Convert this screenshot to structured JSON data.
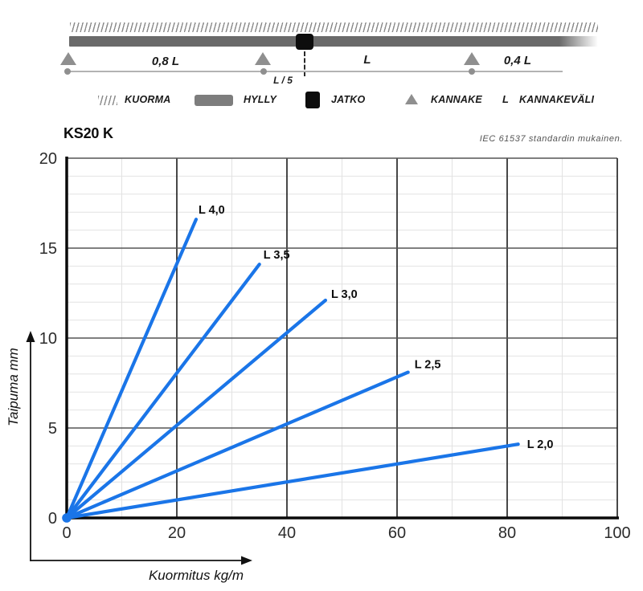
{
  "beam_diagram": {
    "span_labels": {
      "left": "0,8 L",
      "middle": "L",
      "right": "0,4 L"
    },
    "joint_offset_label": "L / 5"
  },
  "legend": {
    "items": [
      {
        "icon": "hatch-icon",
        "label": "KUORMA"
      },
      {
        "icon": "bar-icon",
        "label": "HYLLY"
      },
      {
        "icon": "square-icon",
        "label": "JATKO"
      },
      {
        "icon": "triangle-icon",
        "label": "KANNAKE"
      },
      {
        "icon": "letter-symbol",
        "symbol": "L",
        "label": "KANNAKEVÄLI"
      }
    ]
  },
  "chart": {
    "title": "KS20 K",
    "standard_note": "IEC 61537 standardin mukainen.",
    "x_axis_label": "Kuormitus kg/m",
    "y_axis_label": "Taipuma mm"
  },
  "chart_data": {
    "type": "line",
    "title": "KS20 K",
    "xlabel": "Kuormitus kg/m",
    "ylabel": "Taipuma mm",
    "xlim": [
      0,
      100
    ],
    "ylim": [
      0,
      20
    ],
    "x_major_ticks": [
      0,
      20,
      40,
      60,
      80,
      100
    ],
    "y_major_ticks": [
      0,
      5,
      10,
      15,
      20
    ],
    "x_minor_step": 10,
    "y_minor_step": 1,
    "grid": "major dark lines every 20 kg/m and 5 mm, minor light lines every 10 kg/m and 1 mm",
    "legend_position": "inline-labels-at-line-ends",
    "series": [
      {
        "name": "L 4,0",
        "points": [
          [
            0,
            0
          ],
          [
            23.5,
            16.6
          ]
        ]
      },
      {
        "name": "L 3,5",
        "points": [
          [
            0,
            0
          ],
          [
            35,
            14.1
          ]
        ]
      },
      {
        "name": "L 3,0",
        "points": [
          [
            0,
            0
          ],
          [
            47,
            12.1
          ]
        ]
      },
      {
        "name": "L 2,5",
        "points": [
          [
            0,
            0
          ],
          [
            62,
            8.1
          ]
        ]
      },
      {
        "name": "L 2,0",
        "points": [
          [
            0,
            0
          ],
          [
            82,
            4.1
          ]
        ]
      }
    ],
    "series_color": "#1a75e8"
  },
  "colors": {
    "line_blue": "#1a75e8",
    "shelf_gray": "#6a6a6a",
    "support_gray": "#8f8f8f",
    "joint_black": "#0d0d0d",
    "hatch_gray": "#8a8a8a",
    "minor_grid": "#e2e2e2",
    "major_grid": "#555555"
  }
}
